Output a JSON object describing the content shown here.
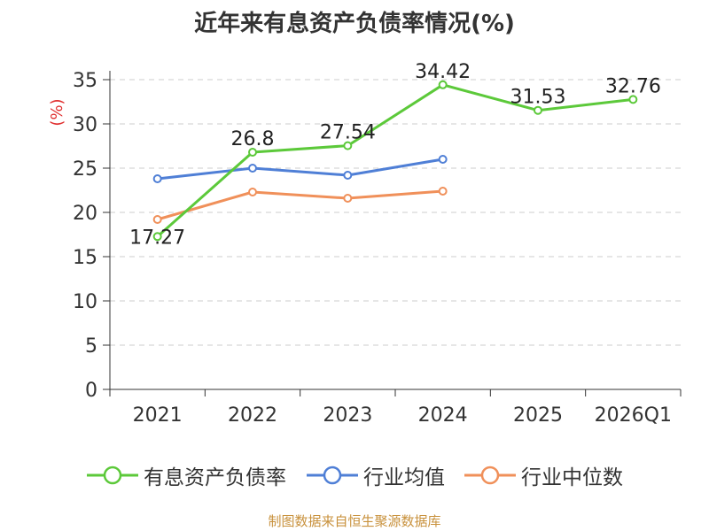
{
  "title": "近年来有息资产负债率情况(%)",
  "source": "制图数据来自恒生聚源数据库",
  "colors": {
    "grid": "#cccccc",
    "axis": "#333333",
    "ylabel": "#e03030",
    "title": "#333333",
    "source": "#c8913c"
  },
  "chart_data": {
    "type": "line",
    "title": "近年来有息资产负债率情况(%)",
    "ylabel": "(%)",
    "xlabel": "",
    "categories": [
      "2021",
      "2022",
      "2023",
      "2024",
      "2025",
      "2026Q1"
    ],
    "ylim": [
      0,
      35
    ],
    "yticks": [
      0,
      5,
      10,
      15,
      20,
      25,
      30,
      35
    ],
    "grid": true,
    "legend_position": "bottom",
    "series": [
      {
        "name": "有息资产负债率",
        "color": "#5cc93a",
        "values": [
          17.27,
          26.8,
          27.54,
          34.42,
          31.53,
          32.76
        ],
        "labels": [
          "17.27",
          "26.8",
          "27.54",
          "34.42",
          "31.53",
          "32.76"
        ]
      },
      {
        "name": "行业均值",
        "color": "#4f7fd6",
        "values": [
          23.8,
          25.0,
          24.2,
          26.0,
          null,
          null
        ]
      },
      {
        "name": "行业中位数",
        "color": "#f0905a",
        "values": [
          19.2,
          22.3,
          21.6,
          22.4,
          null,
          null
        ]
      }
    ]
  }
}
